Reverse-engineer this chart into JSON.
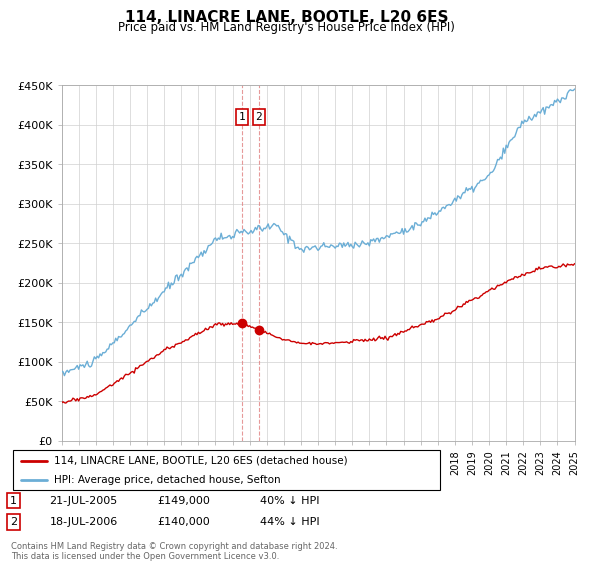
{
  "title": "114, LINACRE LANE, BOOTLE, L20 6ES",
  "subtitle": "Price paid vs. HM Land Registry's House Price Index (HPI)",
  "legend_line1": "114, LINACRE LANE, BOOTLE, L20 6ES (detached house)",
  "legend_line2": "HPI: Average price, detached house, Sefton",
  "sale1_date": "21-JUL-2005",
  "sale1_price": "£149,000",
  "sale1_hpi": "40% ↓ HPI",
  "sale2_date": "18-JUL-2006",
  "sale2_price": "£140,000",
  "sale2_hpi": "44% ↓ HPI",
  "footer": "Contains HM Land Registry data © Crown copyright and database right 2024.\nThis data is licensed under the Open Government Licence v3.0.",
  "hpi_color": "#6baed6",
  "price_color": "#cc0000",
  "sale1_year": 2005.54,
  "sale2_year": 2006.54,
  "sale1_value": 149000,
  "sale2_value": 140000,
  "ylim_min": 0,
  "ylim_max": 450000,
  "xlim_min": 1995,
  "xlim_max": 2025
}
